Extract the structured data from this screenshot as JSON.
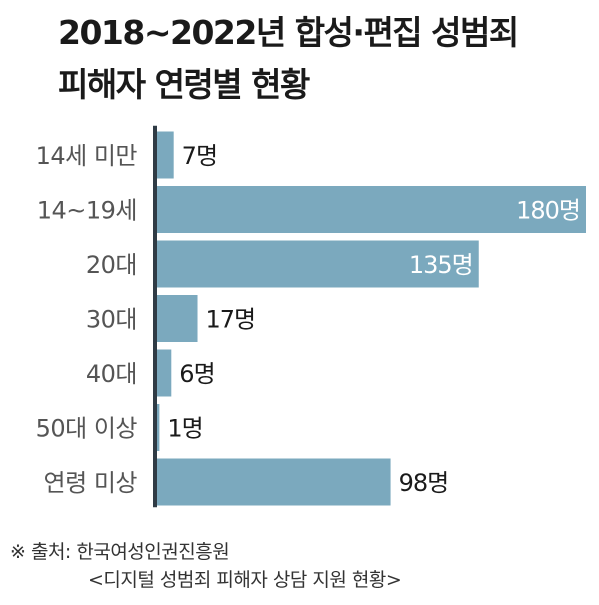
{
  "chart_data": {
    "type": "bar",
    "orientation": "horizontal",
    "title_lines": [
      "2018~2022년 합성·편집 성범죄",
      "피해자 연령별 현황"
    ],
    "categories": [
      "14세 미만",
      "14~19세",
      "20대",
      "30대",
      "40대",
      "50대 이상",
      "연령 미상"
    ],
    "values": [
      7,
      180,
      135,
      17,
      6,
      1,
      98
    ],
    "value_labels": [
      "7명",
      "180명",
      "135명",
      "17명",
      "6명",
      "1명",
      "98명"
    ],
    "xlim": [
      0,
      180
    ],
    "grid": false,
    "legend": "none"
  },
  "source": {
    "line1": "※ 출처: 한국여성인권진흥원",
    "line2": "<디지털 성범죄 피해자 상담 지원 현황>"
  },
  "colors": {
    "bar": "#7ba9be",
    "axis": "#2f3b45",
    "label": "#555555",
    "value_label": "#1a1a1a",
    "value_label_inside": "#ffffff"
  }
}
